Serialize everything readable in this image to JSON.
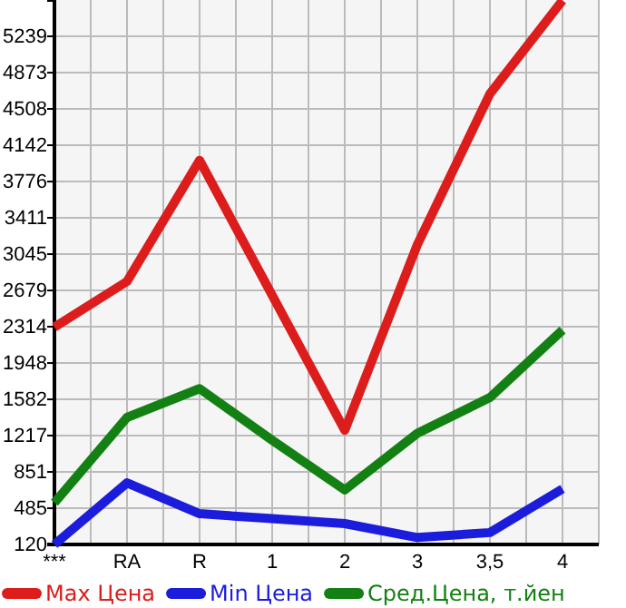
{
  "chart_data": {
    "type": "line",
    "categories": [
      "***",
      "RA",
      "R",
      "1",
      "2",
      "3",
      "3,5",
      "4"
    ],
    "series": [
      {
        "name": "Max Цена",
        "color": "#dd1c1c",
        "values": [
          2310,
          2770,
          3990,
          2630,
          1270,
          3140,
          4660,
          5600
        ]
      },
      {
        "name": "Min Цена",
        "color": "#1c1cdd",
        "values": [
          120,
          740,
          430,
          380,
          330,
          190,
          240,
          680
        ]
      },
      {
        "name": "Сред.Цена, т.йен",
        "color": "#138013",
        "values": [
          540,
          1400,
          1690,
          1170,
          670,
          1240,
          1600,
          2280
        ]
      }
    ],
    "ylim": [
      120,
      5605
    ],
    "yticks": [
      120,
      485,
      851,
      1217,
      1582,
      1948,
      2314,
      2679,
      3045,
      3411,
      3776,
      4142,
      4508,
      4873,
      5239
    ],
    "grid": true,
    "legend": "bottom",
    "marker": "none",
    "line_style": "solid"
  }
}
